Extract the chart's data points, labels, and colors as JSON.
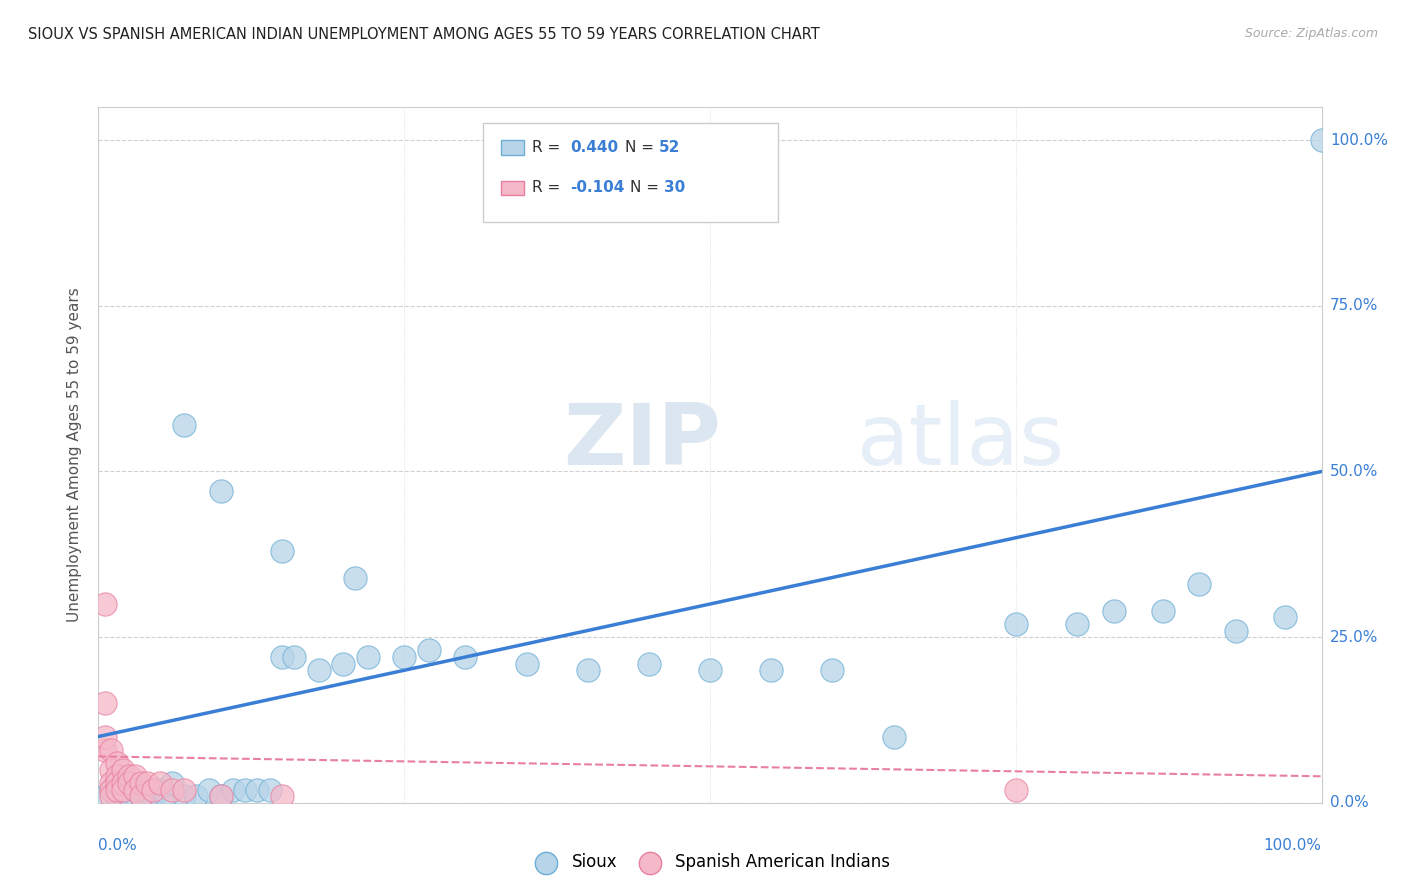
{
  "title": "SIOUX VS SPANISH AMERICAN INDIAN UNEMPLOYMENT AMONG AGES 55 TO 59 YEARS CORRELATION CHART",
  "source": "Source: ZipAtlas.com",
  "ylabel": "Unemployment Among Ages 55 to 59 years",
  "ytick_labels": [
    "0.0%",
    "25.0%",
    "50.0%",
    "75.0%",
    "100.0%"
  ],
  "ytick_values": [
    0,
    25,
    50,
    75,
    100
  ],
  "xtick_labels": [
    "0.0%",
    "100.0%"
  ],
  "xtick_values": [
    0,
    100
  ],
  "xlim": [
    0,
    100
  ],
  "ylim": [
    0,
    105
  ],
  "sioux_color": "#b8d4e8",
  "sioux_edge": "#6baed6",
  "spanish_color": "#f4b8c8",
  "spanish_edge": "#e87fa0",
  "line_color": "#3a7fd5",
  "dashed_line_color": "#e87fa0",
  "tick_color": "#3a7fd5",
  "sioux_points": [
    [
      0.5,
      1
    ],
    [
      1,
      2
    ],
    [
      1.5,
      1
    ],
    [
      2,
      2
    ],
    [
      2.5,
      1
    ],
    [
      3,
      2
    ],
    [
      3.5,
      1
    ],
    [
      4,
      2
    ],
    [
      4.5,
      1
    ],
    [
      5,
      2
    ],
    [
      5.5,
      1
    ],
    [
      6,
      3
    ],
    [
      7,
      1
    ],
    [
      8,
      1
    ],
    [
      9,
      2
    ],
    [
      10,
      1
    ],
    [
      11,
      2
    ],
    [
      12,
      2
    ],
    [
      13,
      2
    ],
    [
      14,
      2
    ],
    [
      15,
      22
    ],
    [
      16,
      22
    ],
    [
      18,
      20
    ],
    [
      20,
      21
    ],
    [
      22,
      22
    ],
    [
      25,
      22
    ],
    [
      27,
      23
    ],
    [
      30,
      22
    ],
    [
      35,
      21
    ],
    [
      40,
      20
    ],
    [
      45,
      21
    ],
    [
      50,
      20
    ],
    [
      55,
      20
    ],
    [
      60,
      20
    ],
    [
      65,
      10
    ],
    [
      75,
      27
    ],
    [
      80,
      27
    ],
    [
      83,
      29
    ],
    [
      87,
      29
    ],
    [
      90,
      33
    ],
    [
      93,
      26
    ],
    [
      97,
      28
    ],
    [
      7,
      57
    ],
    [
      10,
      47
    ],
    [
      15,
      38
    ],
    [
      21,
      34
    ],
    [
      100,
      100
    ]
  ],
  "spanish_points": [
    [
      0.5,
      30
    ],
    [
      0.5,
      8
    ],
    [
      0.5,
      15
    ],
    [
      0.5,
      10
    ],
    [
      1,
      8
    ],
    [
      1,
      5
    ],
    [
      1,
      3
    ],
    [
      1,
      2
    ],
    [
      1,
      1
    ],
    [
      1.5,
      6
    ],
    [
      1.5,
      4
    ],
    [
      1.5,
      3
    ],
    [
      1.5,
      2
    ],
    [
      2,
      5
    ],
    [
      2,
      3
    ],
    [
      2,
      2
    ],
    [
      2.5,
      4
    ],
    [
      2.5,
      3
    ],
    [
      3,
      4
    ],
    [
      3,
      2
    ],
    [
      3.5,
      3
    ],
    [
      3.5,
      1
    ],
    [
      4,
      3
    ],
    [
      4.5,
      2
    ],
    [
      5,
      3
    ],
    [
      6,
      2
    ],
    [
      7,
      2
    ],
    [
      10,
      1
    ],
    [
      15,
      1
    ],
    [
      75,
      2
    ]
  ],
  "sioux_line_x": [
    0,
    100
  ],
  "sioux_line_y": [
    10,
    50
  ],
  "spanish_line_x": [
    0,
    100
  ],
  "spanish_line_y": [
    7,
    4
  ]
}
